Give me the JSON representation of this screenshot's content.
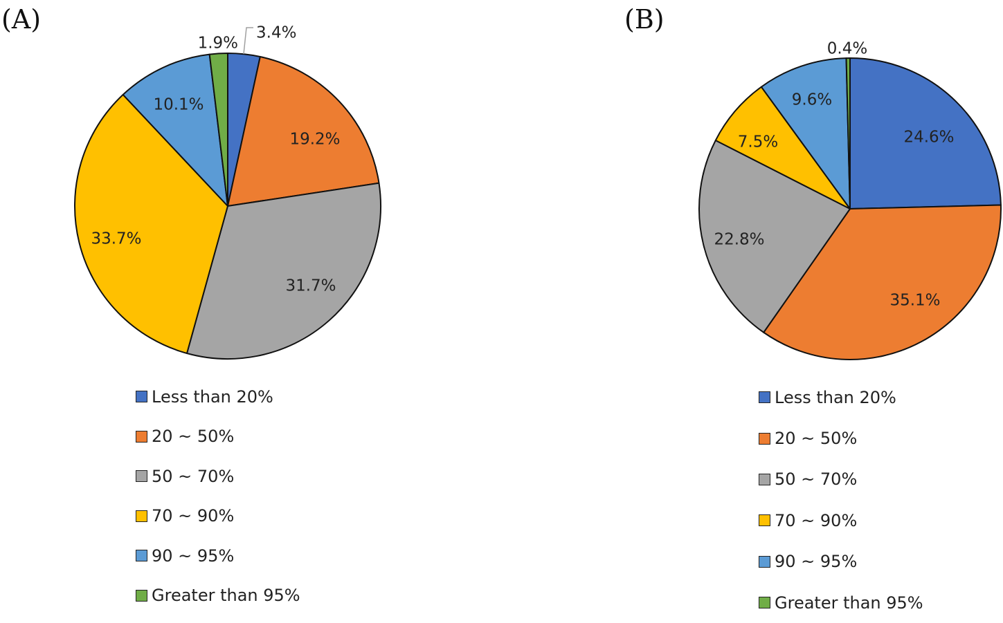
{
  "chart_data": [
    {
      "type": "pie",
      "title": "(A)",
      "categories": [
        "Less than 20%",
        "20 ~ 50%",
        "50 ~ 70%",
        "70 ~ 90%",
        "90 ~ 95%",
        "Greater than 95%"
      ],
      "values": [
        3.4,
        19.2,
        31.7,
        33.7,
        10.1,
        1.9
      ],
      "labels": [
        "3.4%",
        "19.2%",
        "31.7%",
        "33.7%",
        "10.1%",
        "1.9%"
      ],
      "colors": [
        "#4472C4",
        "#ED7D31",
        "#A5A5A5",
        "#FFC000",
        "#5B9BD5",
        "#70AD47"
      ],
      "legend": "bottom"
    },
    {
      "type": "pie",
      "title": "(B)",
      "categories": [
        "Less than 20%",
        "20 ~ 50%",
        "50 ~ 70%",
        "70 ~ 90%",
        "90 ~ 95%",
        "Greater than 95%"
      ],
      "values": [
        24.6,
        35.1,
        22.8,
        7.5,
        9.6,
        0.4
      ],
      "labels": [
        "24.6%",
        "35.1%",
        "22.8%",
        "7.5%",
        "9.6%",
        "0.4%"
      ],
      "colors": [
        "#4472C4",
        "#ED7D31",
        "#A5A5A5",
        "#FFC000",
        "#5B9BD5",
        "#70AD47"
      ],
      "legend": "bottom"
    }
  ]
}
